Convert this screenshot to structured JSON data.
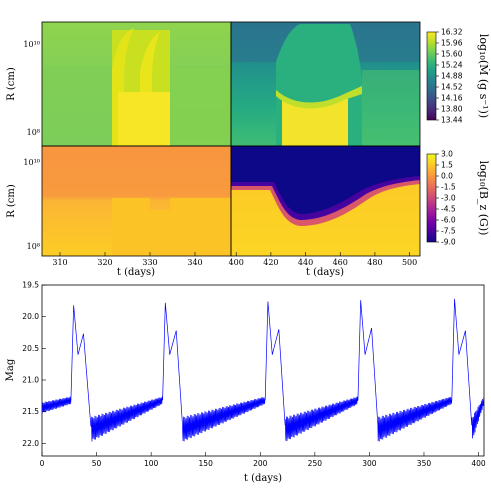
{
  "chart_data": [
    {
      "type": "heatmap",
      "panel": "top-left",
      "quantity": "mass accretion rate",
      "x_range_days": [
        306,
        348
      ],
      "y_scale": "log",
      "y_ticks": [
        "10¹⁰",
        "10⁹",
        "10⁸"
      ],
      "ylabel": "R (cm)",
      "description_colormap": "viridis"
    },
    {
      "type": "heatmap",
      "panel": "top-right",
      "quantity": "mass accretion rate",
      "x_range_days": [
        397,
        506
      ],
      "y_scale": "log",
      "colorbar": {
        "label": "log₁₀(Ṁ (g s⁻¹))",
        "ticks": [
          "16.32",
          "15.96",
          "15.60",
          "15.24",
          "14.88",
          "14.52",
          "14.16",
          "13.80",
          "13.44"
        ],
        "range": [
          13.44,
          16.32
        ],
        "colormap": "viridis"
      }
    },
    {
      "type": "heatmap",
      "panel": "bottom-left",
      "quantity": "magnetic field",
      "x_range_days": [
        306,
        348
      ],
      "x_ticks": [
        "310",
        "320",
        "330",
        "340"
      ],
      "xlabel": "t (days)",
      "y_scale": "log",
      "y_ticks": [
        "10¹⁰",
        "10⁹",
        "10⁸"
      ],
      "ylabel": "R (cm)",
      "colormap": "plasma"
    },
    {
      "type": "heatmap",
      "panel": "bottom-right",
      "quantity": "magnetic field",
      "x_range_days": [
        397,
        506
      ],
      "x_ticks": [
        "400",
        "420",
        "440",
        "460",
        "480",
        "500"
      ],
      "xlabel": "t (days)",
      "colorbar": {
        "label": "log₁₀(B_z (G))",
        "ticks": [
          "3.0",
          "1.5",
          "0.0",
          "-1.5",
          "-3.0",
          "-4.5",
          "-6.0",
          "-7.5",
          "-9.0"
        ],
        "range": [
          -9.0,
          3.0
        ],
        "colormap": "plasma"
      }
    },
    {
      "type": "line",
      "panel": "light-curve",
      "xlabel": "t (days)",
      "ylabel": "Mag",
      "xlim": [
        0,
        405
      ],
      "ylim": [
        22.2,
        19.5
      ],
      "y_inverted": true,
      "x_ticks": [
        "0",
        "50",
        "100",
        "150",
        "200",
        "250",
        "300",
        "350",
        "400"
      ],
      "y_ticks": [
        "19.5",
        "20.0",
        "20.5",
        "21.0",
        "21.5",
        "22.0"
      ],
      "line_color": "#0000ff",
      "outburst_peaks": [
        {
          "t": 29,
          "mag": 19.82
        },
        {
          "t": 113,
          "mag": 19.78
        },
        {
          "t": 207,
          "mag": 19.76
        },
        {
          "t": 292,
          "mag": 19.74
        },
        {
          "t": 378,
          "mag": 19.72
        }
      ],
      "secondary_peaks": [
        {
          "t": 38,
          "mag": 20.27
        },
        {
          "t": 123,
          "mag": 20.22
        },
        {
          "t": 217,
          "mag": 20.2
        },
        {
          "t": 302,
          "mag": 20.18
        },
        {
          "t": 388,
          "mag": 20.22
        }
      ],
      "quiescence_start_mag": 21.78,
      "quiescence_end_mag": 21.32,
      "decline_end_offset_days": 16
    }
  ],
  "colors": {
    "viridis": [
      "#440154",
      "#482878",
      "#3e4989",
      "#31688e",
      "#26828e",
      "#1f9e89",
      "#35b779",
      "#6ece58",
      "#b5de2b",
      "#fde725"
    ],
    "plasma": [
      "#0d0887",
      "#46039f",
      "#7201a8",
      "#9c179e",
      "#bd3786",
      "#d8576b",
      "#ed7953",
      "#fb9f3a",
      "#fdca26",
      "#f0f921"
    ]
  }
}
